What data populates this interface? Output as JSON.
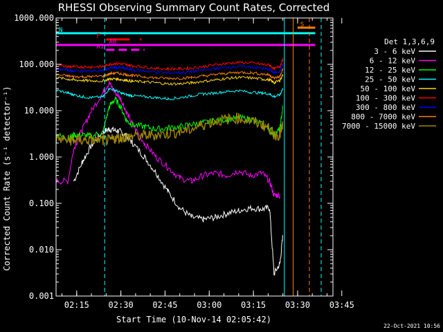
{
  "chart_data": {
    "type": "line",
    "title": "RHESSI Observing Summary Count Rates, Corrected",
    "xlabel": "Start Time (10-Nov-14 02:05:42)",
    "ylabel": "Corrected Count Rate (s⁻¹ detector⁻¹)",
    "yscale": "log",
    "ylim": [
      0.001,
      1000
    ],
    "xlim_minutes": [
      8,
      102
    ],
    "x_ticks": [
      {
        "min": 15,
        "label": "02:15"
      },
      {
        "min": 30,
        "label": "02:30"
      },
      {
        "min": 45,
        "label": "02:45"
      },
      {
        "min": 60,
        "label": "03:00"
      },
      {
        "min": 75,
        "label": "03:15"
      },
      {
        "min": 90,
        "label": "03:30"
      },
      {
        "min": 105,
        "label": "03:45"
      }
    ],
    "y_ticks": [
      {
        "value": 1000,
        "label": "1000.000"
      },
      {
        "value": 100,
        "label": "100.000"
      },
      {
        "value": 10,
        "label": "10.000"
      },
      {
        "value": 1,
        "label": "1.000"
      },
      {
        "value": 0.1,
        "label": "0.100"
      },
      {
        "value": 0.01,
        "label": "0.010"
      },
      {
        "value": 0.001,
        "label": "0.001"
      }
    ],
    "legend_title": "Det 1,3,6,9",
    "legend_position": "right",
    "x": [
      8,
      12,
      14,
      17,
      20,
      24,
      26,
      28,
      30,
      32,
      34,
      38,
      42,
      46,
      50,
      54,
      58,
      62,
      66,
      70,
      74,
      78,
      80.5,
      82,
      84,
      85
    ],
    "series": [
      {
        "name": "3 - 6 keV",
        "color": "#ffffff",
        "values": [
          null,
          null,
          0.3,
          0.8,
          1.8,
          3.5,
          4,
          3.8,
          3.5,
          2.8,
          2,
          1,
          0.45,
          0.18,
          0.08,
          0.05,
          0.045,
          0.05,
          0.06,
          0.07,
          0.08,
          0.075,
          0.08,
          0.003,
          0.005,
          0.02
        ]
      },
      {
        "name": "6 - 12 keV",
        "color": "#ff00ff",
        "values": [
          0.3,
          0.3,
          1.5,
          4,
          10,
          25,
          40,
          25,
          18,
          9,
          5,
          2,
          1,
          0.6,
          0.35,
          0.3,
          0.4,
          0.45,
          0.4,
          0.5,
          0.4,
          0.45,
          0.3,
          0.15,
          0.15,
          null
        ]
      },
      {
        "name": "12 - 25 keV",
        "color": "#00ff00",
        "values": [
          3,
          2.5,
          3,
          3,
          2.8,
          3.5,
          12,
          18,
          12,
          6,
          5,
          4.5,
          4,
          4.2,
          4.5,
          5,
          5.5,
          6,
          6.5,
          7,
          6.5,
          5,
          4,
          3,
          4,
          12
        ]
      },
      {
        "name": "25 - 50 keV",
        "color": "#00ffff",
        "values": [
          28,
          24,
          22,
          20,
          19,
          20,
          30,
          28,
          24,
          22,
          21,
          20,
          19,
          18,
          19,
          21,
          23,
          24,
          26,
          27,
          25,
          24,
          23,
          20,
          22,
          30
        ]
      },
      {
        "name": "50 - 100 keV",
        "color": "#ffd700",
        "values": [
          52,
          48,
          46,
          45,
          44,
          44,
          48,
          49,
          47,
          45,
          43,
          42,
          40,
          38,
          38,
          40,
          43,
          46,
          50,
          52,
          51,
          48,
          46,
          40,
          45,
          60
        ]
      },
      {
        "name": "100 - 300 keV",
        "color": "#ff0000",
        "values": [
          95,
          90,
          88,
          88,
          88,
          90,
          100,
          105,
          102,
          98,
          93,
          88,
          82,
          80,
          80,
          83,
          90,
          98,
          105,
          110,
          108,
          100,
          96,
          80,
          90,
          130
        ]
      },
      {
        "name": "300 - 800 keV",
        "color": "#0000ff",
        "values": [
          80,
          75,
          72,
          72,
          72,
          74,
          82,
          86,
          84,
          80,
          76,
          72,
          68,
          66,
          66,
          69,
          75,
          81,
          86,
          90,
          88,
          82,
          78,
          65,
          72,
          100
        ]
      },
      {
        "name": "800 - 7000 keV",
        "color": "#ff8000",
        "values": [
          60,
          56,
          54,
          54,
          54,
          56,
          62,
          65,
          63,
          60,
          57,
          54,
          51,
          50,
          50,
          52,
          56,
          60,
          64,
          67,
          66,
          62,
          59,
          50,
          55,
          80
        ]
      },
      {
        "name": "7000 - 15000 keV",
        "color": "#a08800",
        "values": [
          2.5,
          2.3,
          2.3,
          2.3,
          2.3,
          2.3,
          2.3,
          2.5,
          2.6,
          2.7,
          2.8,
          2.9,
          3,
          3.2,
          3.5,
          4,
          5,
          6,
          6.5,
          7,
          6,
          5,
          4,
          3,
          3,
          5
        ]
      }
    ],
    "flag_bars": [
      {
        "label": "N",
        "color": "#00ffff",
        "start": 8,
        "end": 96
      },
      {
        "label": "F",
        "color": "#ff0000",
        "start": 25,
        "end": 33
      },
      {
        "label": "",
        "color": "#ff0000",
        "start": 36.5,
        "end": 37
      },
      {
        "label": "S",
        "color": "#ff8000",
        "start": 90,
        "end": 96
      },
      {
        "label": "A0",
        "color": "#ff00ff",
        "start": 25,
        "end": 37
      },
      {
        "label": "A1",
        "color": "#ff00ff",
        "start": 25,
        "end": 38
      }
    ],
    "vertical_markers": [
      {
        "min": 24.5,
        "color": "#00ffff",
        "style": "dashed"
      },
      {
        "min": 85.5,
        "color": "#00ffff",
        "style": "solid"
      },
      {
        "min": 88.5,
        "color": "#ff8000",
        "style": "solid"
      },
      {
        "min": 94,
        "color": "#ff8000",
        "style": "dashed"
      },
      {
        "min": 98,
        "color": "#00ffff",
        "style": "dashed"
      }
    ],
    "grid": false
  },
  "timestamp": "22-Oct-2021 10:56"
}
